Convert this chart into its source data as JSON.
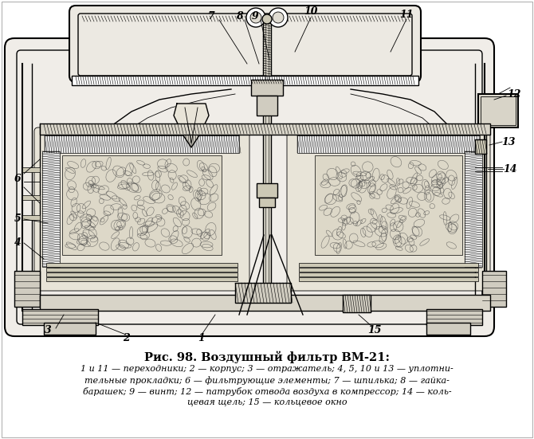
{
  "title": "Рис. 98. Воздушный фильтр ВМ-21:",
  "caption_line1": "1 и 11 — переходники; 2 — корпус; 3 — отражатель; 4, 5, 10 и 13 — уплотни-",
  "caption_line2": "тельные прокладки; 6 — фильтрующие элементы; 7 — шпилька; 8 — гайка-",
  "caption_line3": "барашек; 9 — винт; 12 — патрубок отвода воздуха в компрессор; 14 — коль-",
  "caption_line4": "цевая щель; 15 — кольцевое окно",
  "bg_color": "#ffffff",
  "line_color": "#000000",
  "fig_width": 6.7,
  "fig_height": 5.51,
  "dpi": 100
}
